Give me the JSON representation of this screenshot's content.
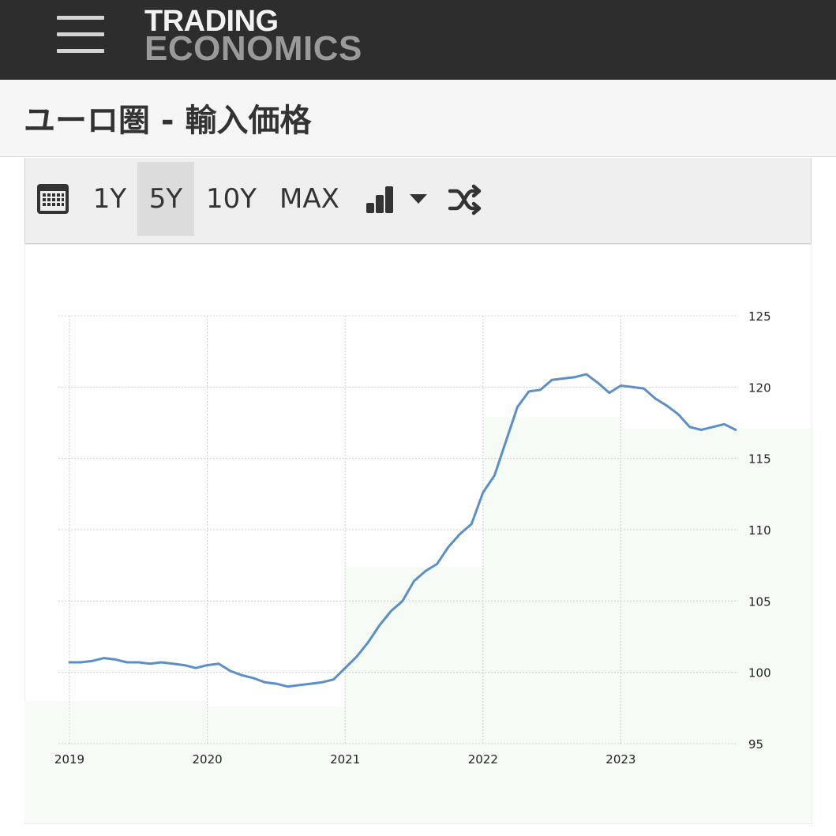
{
  "header": {
    "logo_line1": "TRADING",
    "logo_line2": "ECONOMICS",
    "menu_icon": "hamburger-icon"
  },
  "page": {
    "title": "ユーロ圏 - 輸入価格"
  },
  "toolbar": {
    "calendar_icon": "calendar-icon",
    "ranges": [
      "1Y",
      "5Y",
      "10Y",
      "MAX"
    ],
    "active_range": "5Y",
    "chart_type_icon": "bar-chart-icon",
    "dropdown_icon": "caret-down-icon",
    "compare_icon": "shuffle-icon"
  },
  "chart_data": {
    "type": "line",
    "title": "",
    "xlabel": "",
    "ylabel": "",
    "y_axis_side": "right",
    "ylim": [
      95,
      125
    ],
    "y_ticks": [
      95,
      100,
      105,
      110,
      115,
      120,
      125
    ],
    "x_ticks": [
      "2019",
      "2020",
      "2021",
      "2022",
      "2023"
    ],
    "grid": true,
    "colors": {
      "line": "#5b8fc6",
      "band": "#f6fbf6",
      "grid": "#cfcfcf"
    },
    "x": [
      "2019-01",
      "2019-02",
      "2019-03",
      "2019-04",
      "2019-05",
      "2019-06",
      "2019-07",
      "2019-08",
      "2019-09",
      "2019-10",
      "2019-11",
      "2019-12",
      "2020-01",
      "2020-02",
      "2020-03",
      "2020-04",
      "2020-05",
      "2020-06",
      "2020-07",
      "2020-08",
      "2020-09",
      "2020-10",
      "2020-11",
      "2020-12",
      "2021-01",
      "2021-02",
      "2021-03",
      "2021-04",
      "2021-05",
      "2021-06",
      "2021-07",
      "2021-08",
      "2021-09",
      "2021-10",
      "2021-11",
      "2021-12",
      "2022-01",
      "2022-02",
      "2022-03",
      "2022-04",
      "2022-05",
      "2022-06",
      "2022-07",
      "2022-08",
      "2022-09",
      "2022-10",
      "2022-11",
      "2022-12",
      "2023-01",
      "2023-02",
      "2023-03",
      "2023-04",
      "2023-05",
      "2023-06",
      "2023-07",
      "2023-08",
      "2023-09",
      "2023-10",
      "2023-11"
    ],
    "values": [
      100.7,
      100.7,
      100.8,
      101.0,
      100.9,
      100.7,
      100.7,
      100.6,
      100.7,
      100.6,
      100.5,
      100.3,
      100.5,
      100.6,
      100.1,
      99.8,
      99.6,
      99.3,
      99.2,
      99.0,
      99.1,
      99.2,
      99.3,
      99.5,
      100.3,
      101.1,
      102.1,
      103.3,
      104.3,
      105.0,
      106.4,
      107.1,
      107.6,
      108.8,
      109.7,
      110.4,
      112.6,
      113.8,
      116.2,
      118.6,
      119.7,
      119.8,
      120.5,
      120.6,
      120.7,
      120.9,
      120.3,
      119.6,
      120.1,
      120.0,
      119.9,
      119.2,
      118.7,
      118.1,
      117.2,
      117.0,
      117.2,
      117.4,
      117.0
    ]
  }
}
